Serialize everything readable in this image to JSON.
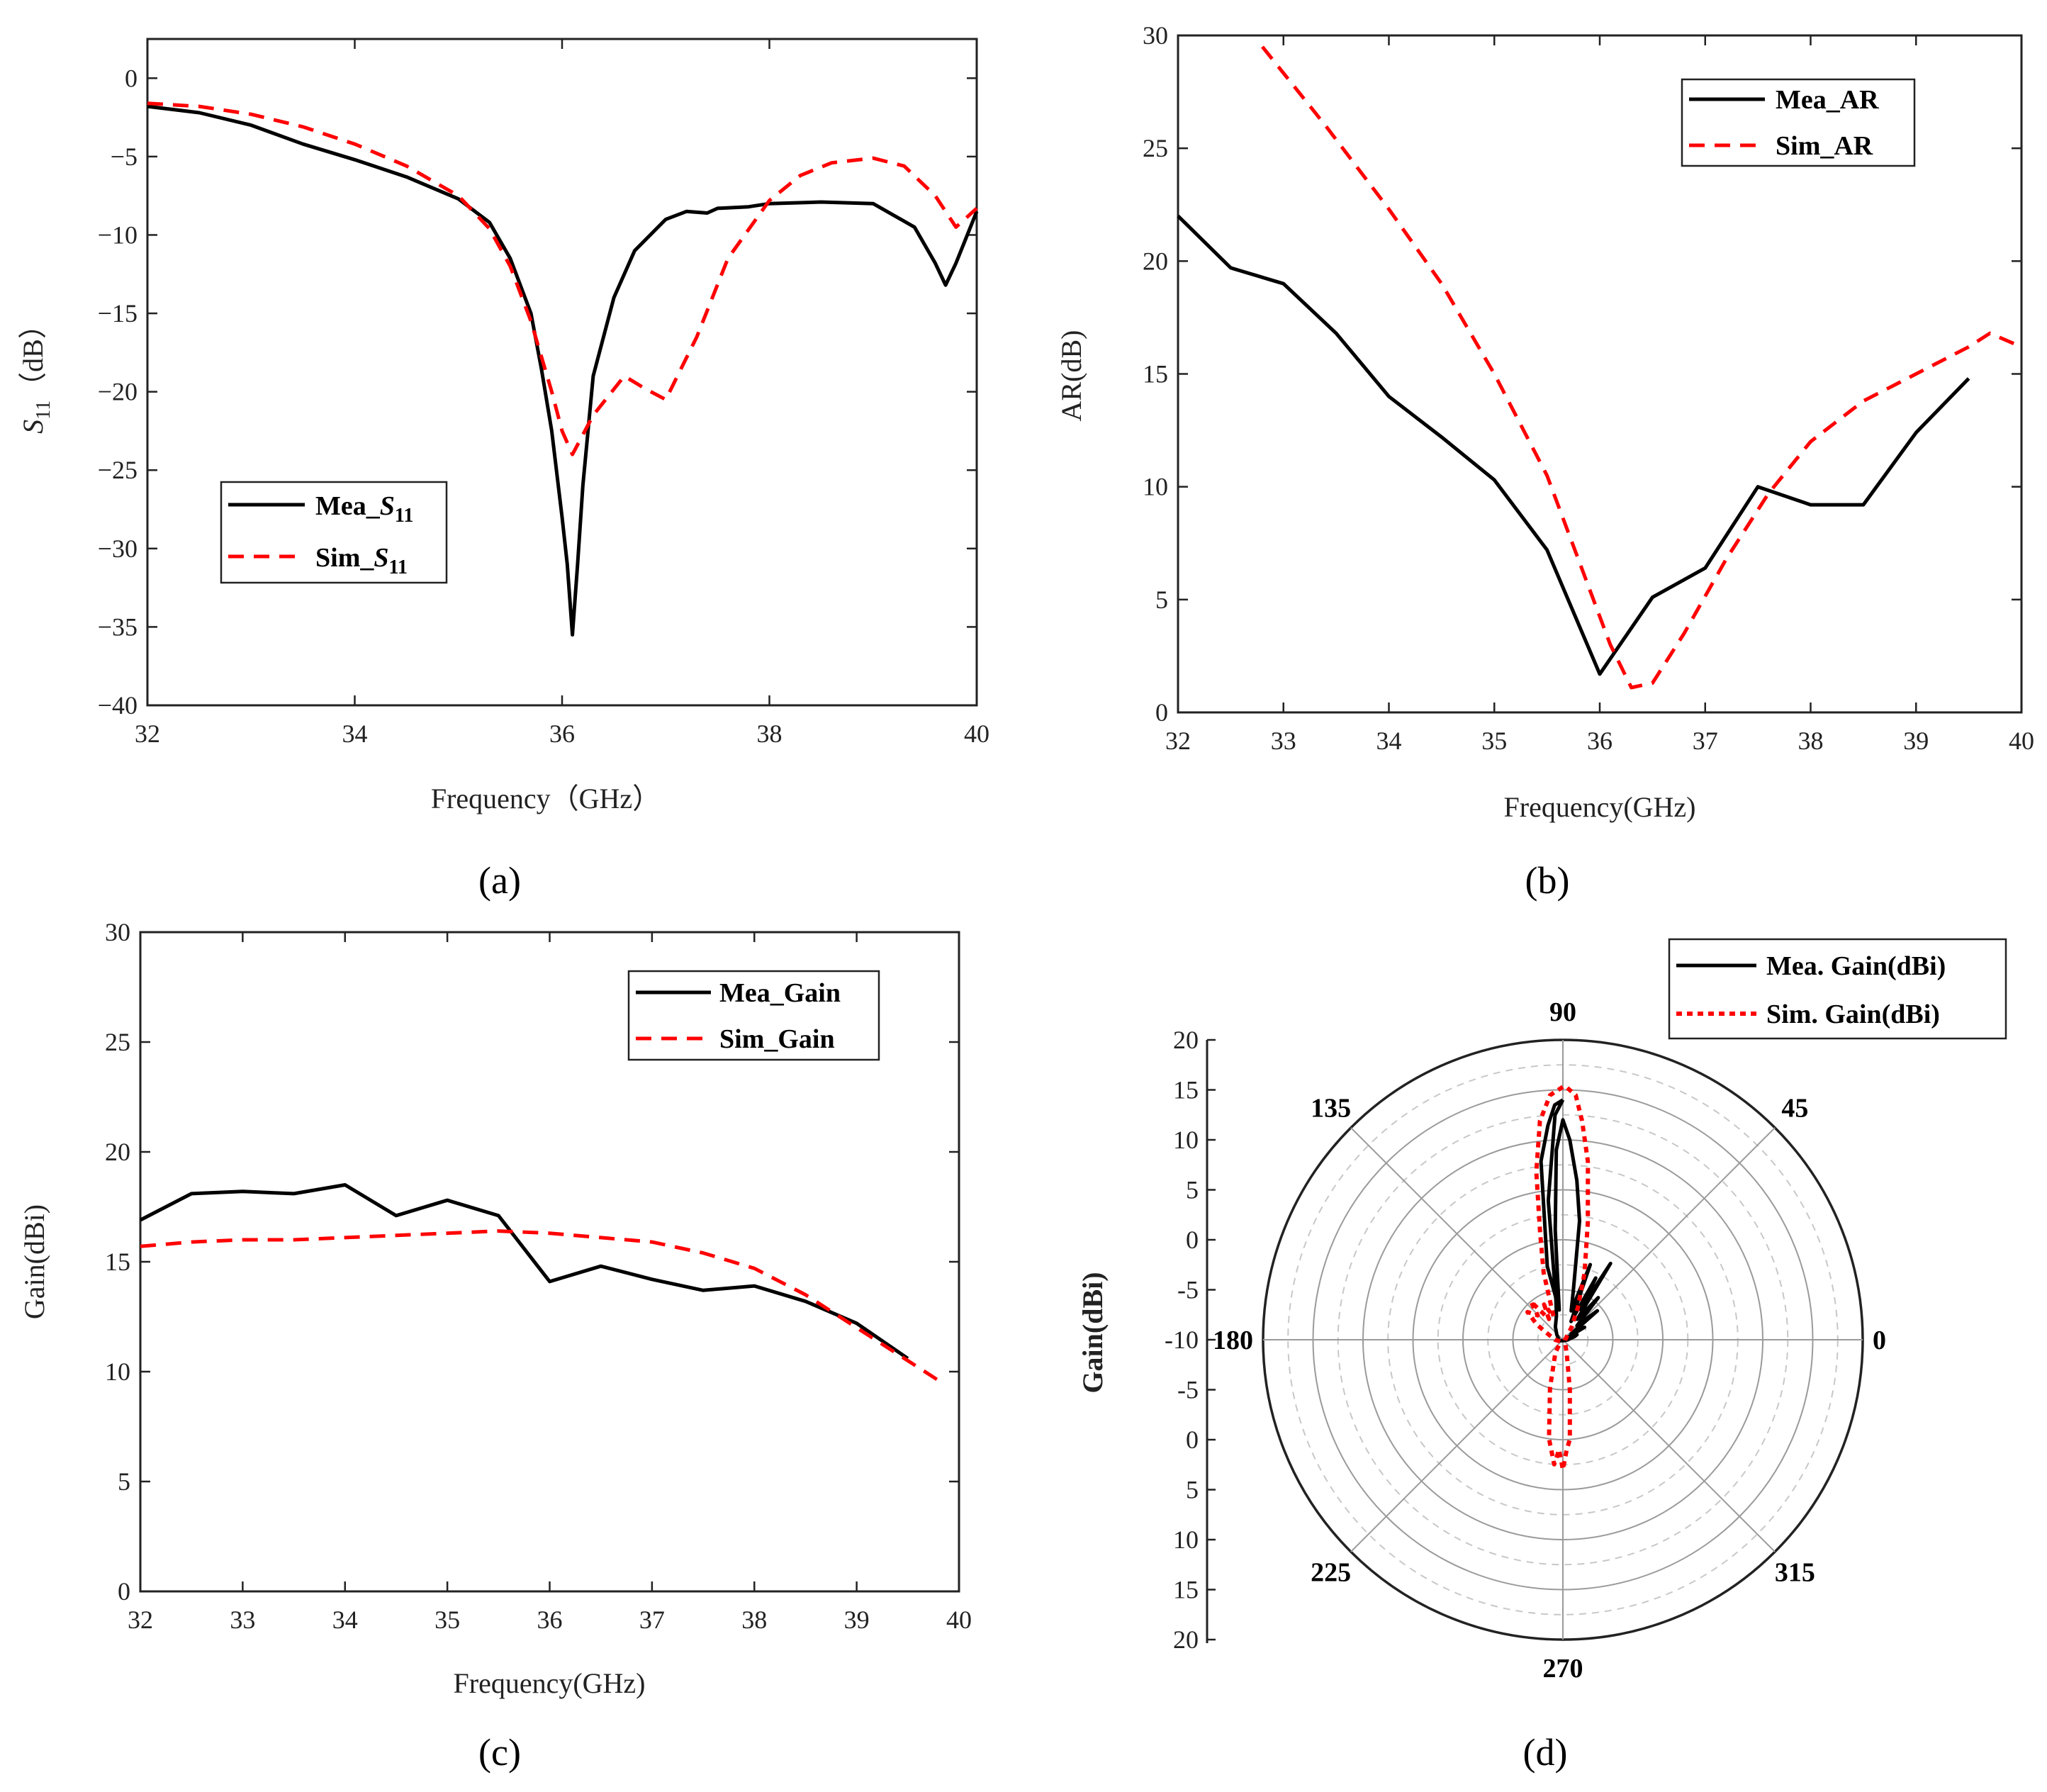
{
  "panels": {
    "a": {
      "label": "(a)"
    },
    "b": {
      "label": "(b)"
    },
    "c": {
      "label": "(c)"
    },
    "d": {
      "label": "(d)"
    }
  },
  "colors": {
    "measured": "#000000",
    "simulated": "#ff0000",
    "axis": "#222222",
    "grid_solid": "#9a9a9a",
    "grid_dashed": "#c8c8c8"
  },
  "chart_data": [
    {
      "id": "a",
      "type": "line",
      "ylabel_main": "S",
      "ylabel_sub": "11",
      "ylabel_unit": "（dB）",
      "xlabel": "Frequency（GHz）",
      "xlim": [
        32,
        40
      ],
      "ylim": [
        -40,
        2.5
      ],
      "xticks": [
        32,
        34,
        36,
        38,
        40
      ],
      "yticks": [
        0,
        -5,
        -10,
        -15,
        -20,
        -25,
        -30,
        -35,
        -40
      ],
      "yticklabels": [
        "0",
        "−5",
        "−10",
        "−15",
        "−20",
        "−25",
        "−30",
        "−35",
        "−40"
      ],
      "legend": {
        "position": "lower-left",
        "entries": [
          {
            "prefix": "Mea_",
            "main": "S",
            "sub": "11"
          },
          {
            "prefix": "Sim_",
            "main": "S",
            "sub": "11"
          }
        ]
      },
      "series": [
        {
          "name": "Mea_S11",
          "style": "solid",
          "x": [
            32,
            32.5,
            33,
            33.5,
            34,
            34.5,
            35,
            35.3,
            35.5,
            35.7,
            35.8,
            35.9,
            36.0,
            36.05,
            36.1,
            36.15,
            36.2,
            36.3,
            36.5,
            36.7,
            37.0,
            37.2,
            37.4,
            37.5,
            37.8,
            38.0,
            38.5,
            39.0,
            39.4,
            39.6,
            39.7,
            39.8,
            40.0
          ],
          "y": [
            -1.8,
            -2.2,
            -3.0,
            -4.2,
            -5.2,
            -6.3,
            -7.7,
            -9.2,
            -11.5,
            -15.0,
            -18.5,
            -22.5,
            -28.0,
            -31.0,
            -35.5,
            -31.0,
            -26.0,
            -19.0,
            -14.0,
            -11.0,
            -9.0,
            -8.5,
            -8.6,
            -8.3,
            -8.2,
            -8.0,
            -7.9,
            -8.0,
            -9.5,
            -11.8,
            -13.2,
            -11.8,
            -8.5
          ]
        },
        {
          "name": "Sim_S11",
          "style": "dashed",
          "x": [
            32,
            32.5,
            33,
            33.5,
            34,
            34.5,
            35,
            35.3,
            35.5,
            35.7,
            35.9,
            36.0,
            36.1,
            36.3,
            36.6,
            36.8,
            37.0,
            37.3,
            37.6,
            38.0,
            38.3,
            38.6,
            39.0,
            39.3,
            39.6,
            39.8,
            40.0
          ],
          "y": [
            -1.6,
            -1.8,
            -2.3,
            -3.1,
            -4.2,
            -5.6,
            -7.5,
            -9.6,
            -12.0,
            -15.5,
            -20.0,
            -22.5,
            -24.0,
            -21.5,
            -19.0,
            -19.8,
            -20.5,
            -16.5,
            -11.5,
            -7.8,
            -6.2,
            -5.4,
            -5.1,
            -5.6,
            -7.5,
            -9.5,
            -8.3
          ]
        }
      ]
    },
    {
      "id": "b",
      "type": "line",
      "ylabel": "AR(dB)",
      "xlabel": "Frequency(GHz)",
      "xlim": [
        32,
        40
      ],
      "ylim": [
        0,
        30
      ],
      "xticks": [
        32,
        33,
        34,
        35,
        36,
        37,
        38,
        39,
        40
      ],
      "yticks": [
        0,
        5,
        10,
        15,
        20,
        25,
        30
      ],
      "legend": {
        "position": "top-right",
        "entries": [
          "Mea_AR",
          "Sim_AR"
        ]
      },
      "series": [
        {
          "name": "Mea_AR",
          "style": "solid",
          "x": [
            32,
            32.5,
            33,
            33.5,
            34,
            34.5,
            35,
            35.5,
            36,
            36.5,
            37,
            37.5,
            38,
            38.5,
            39,
            39.5
          ],
          "y": [
            22.0,
            19.7,
            19.0,
            16.8,
            14.0,
            12.2,
            10.3,
            7.2,
            1.7,
            5.1,
            6.4,
            10.0,
            9.2,
            9.2,
            12.4,
            14.8
          ]
        },
        {
          "name": "Sim_AR",
          "style": "dashed",
          "x": [
            32.8,
            33.4,
            34.0,
            34.5,
            35.0,
            35.5,
            35.9,
            36.1,
            36.3,
            36.5,
            36.8,
            37.2,
            37.6,
            38.0,
            38.5,
            39.0,
            39.5,
            39.7,
            40.0
          ],
          "y": [
            29.5,
            26.0,
            22.3,
            19.0,
            15.0,
            10.5,
            5.5,
            3.0,
            1.1,
            1.3,
            3.5,
            6.8,
            9.7,
            12.0,
            13.8,
            15.0,
            16.2,
            16.8,
            16.2
          ]
        }
      ]
    },
    {
      "id": "c",
      "type": "line",
      "ylabel": "Gain(dBi)",
      "xlabel": "Frequency(GHz)",
      "xlim": [
        32,
        40
      ],
      "ylim": [
        0,
        30
      ],
      "xticks": [
        32,
        33,
        34,
        35,
        36,
        37,
        38,
        39,
        40
      ],
      "yticks": [
        0,
        5,
        10,
        15,
        20,
        25,
        30
      ],
      "legend": {
        "position": "top-right",
        "entries": [
          "Mea_Gain",
          "Sim_Gain"
        ]
      },
      "series": [
        {
          "name": "Mea_Gain",
          "style": "solid",
          "x": [
            32,
            32.5,
            33,
            33.5,
            34,
            34.5,
            35,
            35.5,
            36,
            36.5,
            37,
            37.5,
            38,
            38.5,
            39,
            39.5
          ],
          "y": [
            16.9,
            18.1,
            18.2,
            18.1,
            18.5,
            17.1,
            17.8,
            17.1,
            14.1,
            14.8,
            14.2,
            13.7,
            13.9,
            13.2,
            12.2,
            10.6
          ]
        },
        {
          "name": "Sim_Gain",
          "style": "dashed",
          "x": [
            32,
            32.5,
            33,
            33.5,
            34,
            34.5,
            35,
            35.5,
            36,
            36.5,
            37,
            37.5,
            38,
            38.5,
            39,
            39.5,
            39.8
          ],
          "y": [
            15.7,
            15.9,
            16.0,
            16.0,
            16.1,
            16.2,
            16.3,
            16.4,
            16.3,
            16.1,
            15.9,
            15.4,
            14.7,
            13.5,
            12.0,
            10.5,
            9.6
          ]
        }
      ]
    },
    {
      "id": "d",
      "type": "polar",
      "ylabel": "Gain(dBi)",
      "rlim": [
        -10,
        20
      ],
      "radial_ticks_upper": [
        "20",
        "15",
        "10",
        "5",
        "0",
        "-5",
        "-10"
      ],
      "radial_ticks_lower": [
        "-5",
        "0",
        "5",
        "10",
        "15",
        "20"
      ],
      "angle_labels": [
        "0",
        "45",
        "90",
        "135",
        "180",
        "225",
        "270",
        "315"
      ],
      "angles_deg": [
        0,
        45,
        90,
        135,
        180,
        225,
        270,
        315
      ],
      "legend": {
        "position": "top-right",
        "entries": [
          "Mea. Gain(dBi)",
          "Sim. Gain(dBi)"
        ]
      },
      "series": [
        {
          "name": "Mea. Gain(dBi)",
          "style": "solid",
          "theta": [
            90,
            92,
            94,
            97,
            102,
            97,
            94,
            92,
            90,
            88,
            85,
            82,
            78,
            74,
            70,
            66,
            62,
            60,
            58,
            55,
            50,
            45,
            40,
            35,
            30,
            25,
            20,
            15,
            10,
            5,
            0,
            340,
            320,
            300,
            280,
            270,
            260,
            240,
            210,
            180,
            160,
            140,
            120,
            105,
            100,
            96,
            92,
            90
          ],
          "r": [
            14.0,
            13.5,
            11.5,
            8.0,
            -2.5,
            -7.0,
            1.0,
            9.0,
            12.0,
            10.0,
            6.0,
            2.0,
            -5.0,
            -7.0,
            -2.0,
            -8.0,
            -3.0,
            -6.5,
            -1.0,
            -7.5,
            -4.5,
            -8.0,
            -5.5,
            -9.0,
            -7.5,
            -9.5,
            -8.5,
            -8.8,
            -9.2,
            -9.4,
            -9.5,
            -9.8,
            -9.9,
            -9.9,
            -9.9,
            -9.9,
            -9.9,
            -9.9,
            -9.8,
            -9.5,
            -9.5,
            -9.2,
            -8.5,
            -7.5,
            -6.0,
            4.0,
            12.5,
            14.0
          ]
        },
        {
          "name": "Sim. Gain(dBi)",
          "style": "dotted",
          "theta": [
            90,
            93,
            96,
            99,
            102,
            106,
            112,
            118,
            124,
            130,
            136,
            142,
            150,
            160,
            170,
            180,
            200,
            220,
            240,
            255,
            262,
            266,
            268,
            270,
            272,
            274,
            278,
            285,
            300,
            320,
            340,
            0,
            20,
            40,
            55,
            65,
            72,
            78,
            82,
            85,
            87,
            89,
            90
          ],
          "r": [
            15.3,
            14.5,
            12.0,
            7.0,
            1.0,
            -3.0,
            -7.5,
            -6.0,
            -7.5,
            -5.0,
            -6.5,
            -5.5,
            -7.0,
            -8.5,
            -9.0,
            -9.2,
            -9.6,
            -9.7,
            -8.5,
            -5.0,
            0.0,
            2.5,
            1.0,
            3.0,
            1.0,
            0.0,
            -5.0,
            -8.5,
            -9.5,
            -9.8,
            -9.8,
            -9.8,
            -9.7,
            -9.5,
            -8.5,
            -6.5,
            -3.0,
            2.0,
            8.0,
            12.0,
            14.5,
            15.2,
            15.3
          ]
        }
      ]
    }
  ]
}
